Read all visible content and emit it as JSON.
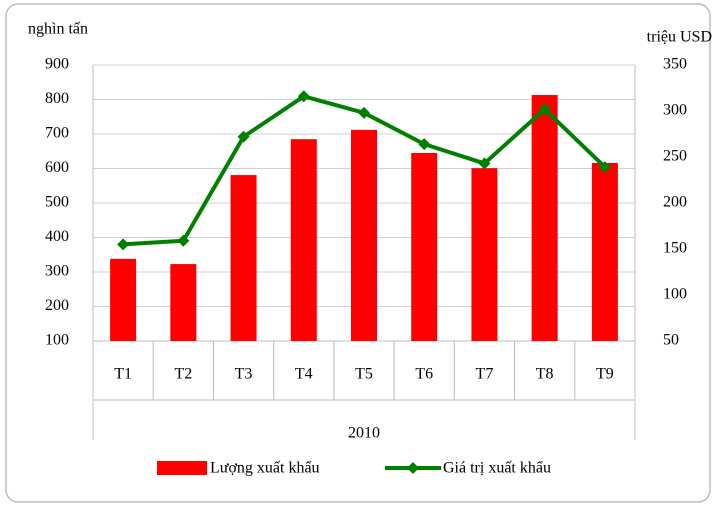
{
  "chart_data": {
    "type": "bar",
    "y_label": "nghìn tấn",
    "y2_label": "triệu USD",
    "categories": [
      "T1",
      "T2",
      "T3",
      "T4",
      "T5",
      "T6",
      "T7",
      "T8",
      "T9"
    ],
    "x_group": "2010",
    "series": [
      {
        "name": "Lượng xuất khẩu",
        "type": "bar",
        "color": "#ff0000",
        "values": [
          338,
          323,
          581,
          685,
          712,
          645,
          601,
          813,
          616
        ]
      },
      {
        "name": "Giá trị xuất khẩu",
        "type": "line",
        "axis": "y2",
        "color": "#008000",
        "values": [
          155,
          159,
          272,
          316,
          298,
          264,
          243,
          302,
          239
        ]
      }
    ],
    "ylim": [
      100,
      900
    ],
    "yticks": [
      100,
      200,
      300,
      400,
      500,
      600,
      700,
      800,
      900
    ],
    "y2lim": [
      50,
      350
    ],
    "y2ticks": [
      50,
      100,
      150,
      200,
      250,
      300,
      350
    ],
    "grid": true,
    "legend": "bottom"
  }
}
